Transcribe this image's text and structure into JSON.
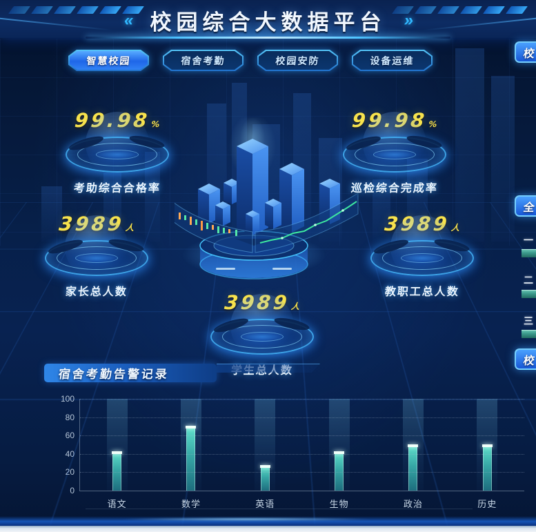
{
  "header": {
    "title": "校园综合大数据平台",
    "left_decor": "«",
    "right_decor": "»"
  },
  "tabs": [
    {
      "label": "智慧校园",
      "active": true
    },
    {
      "label": "宿舍考勤",
      "active": false
    },
    {
      "label": "校园安防",
      "active": false
    },
    {
      "label": "设备运维",
      "active": false
    }
  ],
  "stats": [
    {
      "value": "99.98",
      "unit": "%",
      "label": "考助综合合格率"
    },
    {
      "value": "99.98",
      "unit": "%",
      "label": "巡检综合完成率"
    },
    {
      "value": "3989",
      "unit": "人",
      "label": "家长总人数"
    },
    {
      "value": "3989",
      "unit": "人",
      "label": "教职工总人数"
    },
    {
      "value": "3989",
      "unit": "人",
      "label": "学生总人数"
    }
  ],
  "panel": {
    "title": "宿舍考勤告警记录"
  },
  "chart_data": {
    "type": "bar",
    "title": "宿舍考勤告警记录",
    "categories": [
      "语文",
      "数学",
      "英语",
      "生物",
      "政治",
      "历史"
    ],
    "values": [
      42,
      70,
      27,
      42,
      50,
      50
    ],
    "xlabel": "",
    "ylabel": "",
    "ylim": [
      0,
      100
    ],
    "yticks": [
      0,
      20,
      40,
      60,
      80,
      100
    ],
    "grid": "dotted-horizontal",
    "legend": "none",
    "bar_color": "#4fd6c2"
  },
  "right_edge": {
    "top_tab_label": "校",
    "middle_tab_label": "全",
    "bottom_tab_label": "校",
    "rank_labels": [
      "一",
      "二",
      "三"
    ]
  },
  "colors": {
    "background": "#06183c",
    "accent_cyan": "#35c3ff",
    "number_yellow": "#f7e24d",
    "bar_teal": "#4fd6c2",
    "active_tab_blue": "#2e7df0"
  }
}
